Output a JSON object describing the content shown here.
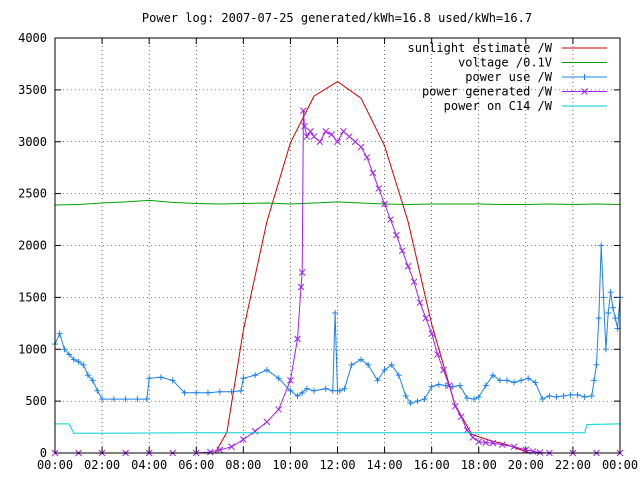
{
  "chart_data": {
    "type": "line",
    "title": "Power log: 2007-07-25 generated/kWh=16.8 used/kWh=16.7",
    "xlabel": "",
    "ylabel": "",
    "xlim": [
      0,
      24
    ],
    "ylim": [
      0,
      4000
    ],
    "x_ticks": [
      {
        "v": 0,
        "label": "00:00"
      },
      {
        "v": 2,
        "label": "02:00"
      },
      {
        "v": 4,
        "label": "04:00"
      },
      {
        "v": 6,
        "label": "06:00"
      },
      {
        "v": 8,
        "label": "08:00"
      },
      {
        "v": 10,
        "label": "10:00"
      },
      {
        "v": 12,
        "label": "12:00"
      },
      {
        "v": 14,
        "label": "14:00"
      },
      {
        "v": 16,
        "label": "16:00"
      },
      {
        "v": 18,
        "label": "18:00"
      },
      {
        "v": 20,
        "label": "20:00"
      },
      {
        "v": 22,
        "label": "22:00"
      },
      {
        "v": 24,
        "label": "00:00"
      }
    ],
    "y_ticks": [
      0,
      500,
      1000,
      1500,
      2000,
      2500,
      3000,
      3500,
      4000
    ],
    "grid": true,
    "legend_position": "top-right",
    "series": [
      {
        "name": "sunlight estimate /W",
        "color": "#cc0000",
        "marker": "none",
        "x": [
          0,
          6.8,
          7.3,
          8,
          9,
          10,
          11,
          12,
          13,
          14,
          15,
          16,
          17,
          17.7,
          18.5,
          19.2,
          19.8,
          20.2,
          24
        ],
        "y": [
          0,
          0,
          200,
          1180,
          2230,
          2990,
          3440,
          3580,
          3420,
          2960,
          2230,
          1240,
          460,
          180,
          120,
          80,
          30,
          0,
          0
        ]
      },
      {
        "name": "voltage /0.1V",
        "color": "#00a000",
        "marker": "none",
        "x": [
          0,
          1,
          2,
          3,
          4,
          5,
          6,
          7,
          8,
          9,
          10,
          11,
          12,
          13,
          14,
          15,
          16,
          17,
          18,
          19,
          20,
          21,
          22,
          23,
          24
        ],
        "y": [
          2390,
          2395,
          2410,
          2420,
          2435,
          2415,
          2405,
          2400,
          2405,
          2410,
          2400,
          2410,
          2420,
          2410,
          2400,
          2395,
          2400,
          2400,
          2400,
          2395,
          2395,
          2400,
          2395,
          2400,
          2395
        ]
      },
      {
        "name": "power use /W",
        "color": "#1e82e6",
        "marker": "plus",
        "x": [
          0,
          0.2,
          0.4,
          0.6,
          0.8,
          1,
          1.2,
          1.4,
          1.6,
          1.8,
          2,
          2.5,
          3,
          3.5,
          3.9,
          4.0,
          4.5,
          5,
          5.5,
          6,
          6.5,
          7,
          7.5,
          7.9,
          8.0,
          8.5,
          9,
          9.5,
          10,
          10.3,
          10.5,
          10.7,
          11,
          11.5,
          11.8,
          11.9,
          12.0,
          12.1,
          12.3,
          12.6,
          13,
          13.3,
          13.7,
          14,
          14.3,
          14.6,
          14.9,
          15.1,
          15.4,
          15.7,
          16,
          16.3,
          16.6,
          16.9,
          17.2,
          17.5,
          17.8,
          18.0,
          18.3,
          18.6,
          18.9,
          19.2,
          19.5,
          19.8,
          20.1,
          20.4,
          20.7,
          21.0,
          21.3,
          21.6,
          21.9,
          22.2,
          22.5,
          22.8,
          22.9,
          23.0,
          23.1,
          23.2,
          23.3,
          23.4,
          23.5,
          23.6,
          23.7,
          23.8,
          23.9,
          24
        ],
        "y": [
          1050,
          1150,
          1000,
          950,
          900,
          880,
          850,
          750,
          700,
          600,
          520,
          520,
          520,
          520,
          520,
          720,
          730,
          700,
          580,
          580,
          580,
          590,
          590,
          600,
          720,
          750,
          800,
          720,
          600,
          550,
          580,
          620,
          600,
          620,
          600,
          1350,
          600,
          600,
          620,
          850,
          900,
          850,
          700,
          800,
          850,
          750,
          550,
          480,
          500,
          520,
          640,
          660,
          650,
          640,
          650,
          530,
          520,
          540,
          650,
          750,
          700,
          700,
          680,
          700,
          720,
          680,
          520,
          550,
          540,
          550,
          560,
          560,
          540,
          550,
          700,
          850,
          1300,
          2000,
          1500,
          1000,
          1350,
          1550,
          1400,
          1300,
          1200,
          1500
        ]
      },
      {
        "name": "power generated /W",
        "color": "#a020f0",
        "marker": "x",
        "x": [
          0,
          1,
          2,
          3,
          4,
          5,
          6,
          6.6,
          7.0,
          7.5,
          8.0,
          8.5,
          9.0,
          9.5,
          10.0,
          10.3,
          10.45,
          10.5,
          10.55,
          10.6,
          10.7,
          10.85,
          11.0,
          11.25,
          11.5,
          11.75,
          12.0,
          12.25,
          12.5,
          12.75,
          13.0,
          13.25,
          13.5,
          13.75,
          14.0,
          14.25,
          14.5,
          14.75,
          15.0,
          15.25,
          15.5,
          15.75,
          16.0,
          16.25,
          16.5,
          16.75,
          17.0,
          17.25,
          17.5,
          17.75,
          18.0,
          18.3,
          18.6,
          19.0,
          19.5,
          20.0,
          20.3,
          20.6,
          21,
          22,
          23,
          24
        ],
        "y": [
          0,
          0,
          0,
          0,
          0,
          0,
          0,
          10,
          30,
          60,
          130,
          210,
          300,
          420,
          700,
          1100,
          1600,
          1740,
          3300,
          3150,
          3050,
          3100,
          3050,
          3000,
          3100,
          3070,
          3000,
          3100,
          3050,
          3000,
          2950,
          2850,
          2700,
          2550,
          2400,
          2250,
          2100,
          1950,
          1800,
          1650,
          1450,
          1300,
          1150,
          950,
          800,
          650,
          450,
          350,
          220,
          150,
          110,
          100,
          95,
          80,
          60,
          30,
          15,
          5,
          0,
          0,
          0,
          0
        ]
      },
      {
        "name": "power on C14 /W",
        "color": "#00d0d0",
        "marker": "none",
        "x": [
          0,
          0.6,
          0.8,
          6,
          12,
          18,
          22.5,
          22.6,
          24
        ],
        "y": [
          280,
          280,
          190,
          195,
          195,
          195,
          195,
          275,
          280
        ]
      }
    ]
  }
}
